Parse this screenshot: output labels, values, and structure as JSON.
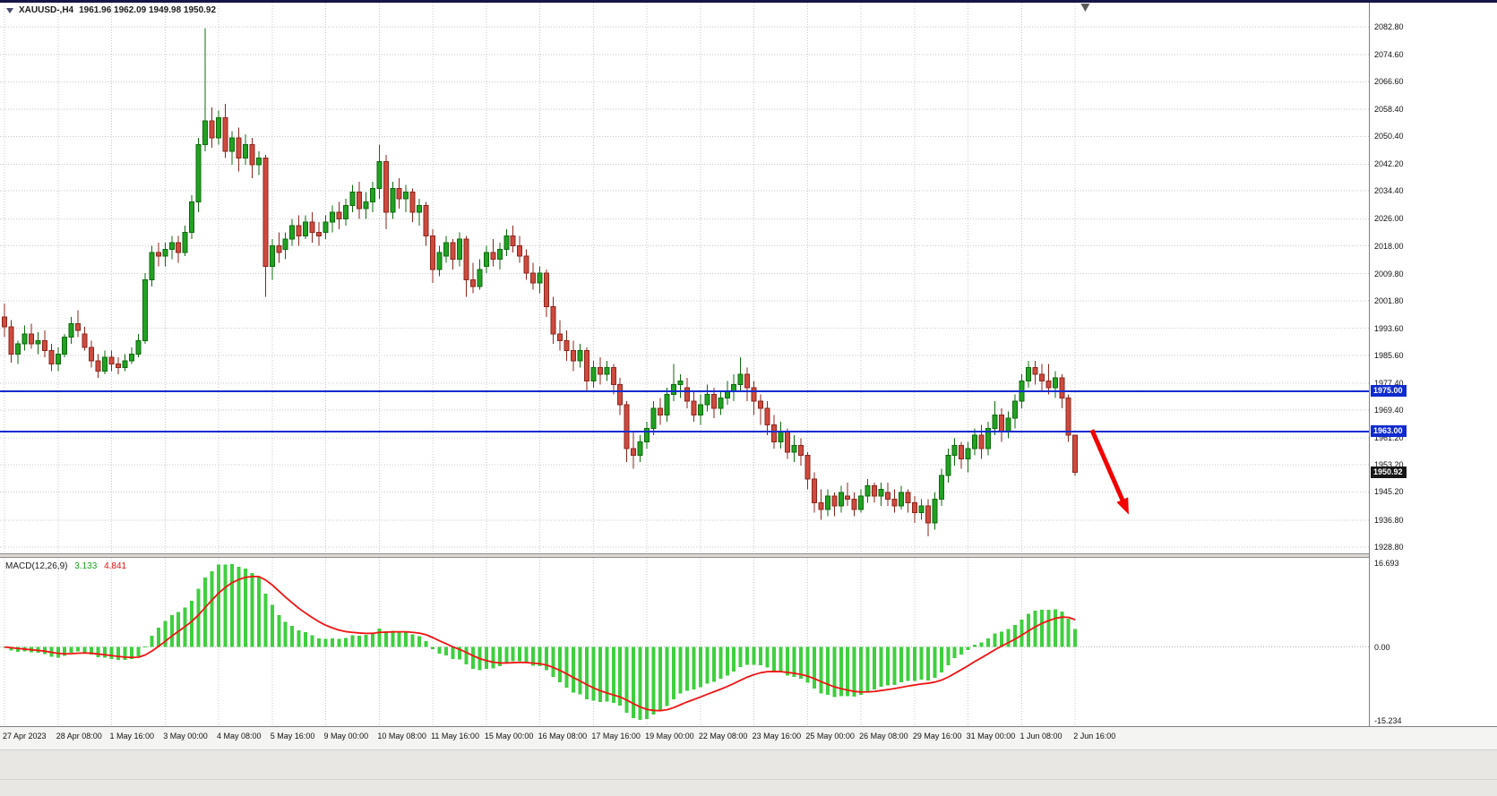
{
  "window": {
    "symbol_label": "XAUUSD-,H4",
    "ohlc": "1961.96 1962.09 1949.98 1950.92"
  },
  "colors": {
    "background": "#ffffff",
    "grid": "#c9c9c9",
    "bull": "#22a122",
    "bull_border": "#0c6b0c",
    "bear": "#cf4a3e",
    "bear_border": "#8c261d",
    "hline_blue": "#0f2bd0",
    "current_price_bg": "#161616",
    "macd_histogram": "#3fcf3f",
    "macd_signal": "#f01414",
    "arrow": "#f20000",
    "shift_marker": "#5a5a5a",
    "axis_text": "#111111"
  },
  "chart_data": {
    "type": "candlestick",
    "symbol": "XAUUSD-",
    "timeframe": "H4",
    "y_range": [
      1927,
      2090
    ],
    "y_ticks": [
      "2082.80",
      "2074.60",
      "2066.60",
      "2058.40",
      "2050.40",
      "2042.20",
      "2034.40",
      "2026.00",
      "2018.00",
      "2009.80",
      "2001.80",
      "1993.60",
      "1985.60",
      "1977.40",
      "1969.40",
      "1961.20",
      "1953.20",
      "1945.20",
      "1936.80",
      "1928.80"
    ],
    "x_labels": [
      {
        "bar": 0,
        "label": "27 Apr 2023"
      },
      {
        "bar": 8,
        "label": "28 Apr 08:00"
      },
      {
        "bar": 16,
        "label": "1 May 16:00"
      },
      {
        "bar": 24,
        "label": "3 May 00:00"
      },
      {
        "bar": 32,
        "label": "4 May 08:00"
      },
      {
        "bar": 40,
        "label": "5 May 16:00"
      },
      {
        "bar": 48,
        "label": "9 May 00:00"
      },
      {
        "bar": 56,
        "label": "10 May 08:00"
      },
      {
        "bar": 64,
        "label": "11 May 16:00"
      },
      {
        "bar": 72,
        "label": "15 May 00:00"
      },
      {
        "bar": 80,
        "label": "16 May 08:00"
      },
      {
        "bar": 88,
        "label": "17 May 16:00"
      },
      {
        "bar": 96,
        "label": "19 May 00:00"
      },
      {
        "bar": 104,
        "label": "22 May 08:00"
      },
      {
        "bar": 112,
        "label": "23 May 16:00"
      },
      {
        "bar": 120,
        "label": "25 May 00:00"
      },
      {
        "bar": 128,
        "label": "26 May 08:00"
      },
      {
        "bar": 136,
        "label": "29 May 16:00"
      },
      {
        "bar": 144,
        "label": "31 May 00:00"
      },
      {
        "bar": 152,
        "label": "1 Jun 08:00"
      },
      {
        "bar": 160,
        "label": "2 Jun 16:00"
      }
    ],
    "candles": [
      [
        1997,
        2001,
        1991,
        1994
      ],
      [
        1994,
        1996,
        1983.5,
        1986
      ],
      [
        1986,
        1990,
        1983,
        1989
      ],
      [
        1989,
        1994.5,
        1987,
        1992
      ],
      [
        1992,
        1995,
        1987.5,
        1989
      ],
      [
        1989,
        1992.5,
        1986,
        1990
      ],
      [
        1990,
        1993,
        1985,
        1987
      ],
      [
        1987,
        1989,
        1981,
        1983
      ],
      [
        1983,
        1988,
        1981,
        1986
      ],
      [
        1986,
        1992,
        1985,
        1991
      ],
      [
        1991,
        1997,
        1989,
        1995
      ],
      [
        1995,
        1999,
        1991,
        1993
      ],
      [
        1992,
        1994,
        1987,
        1988
      ],
      [
        1988,
        1990,
        1982,
        1984
      ],
      [
        1984,
        1986,
        1979,
        1981
      ],
      [
        1981,
        1987,
        1980,
        1985
      ],
      [
        1985,
        1987,
        1981,
        1983
      ],
      [
        1983,
        1985,
        1980,
        1982
      ],
      [
        1982,
        1986,
        1981,
        1984
      ],
      [
        1984,
        1988,
        1983,
        1986
      ],
      [
        1986,
        1992,
        1985,
        1990
      ],
      [
        1990,
        2010,
        1989,
        2008
      ],
      [
        2008,
        2018,
        2006,
        2016
      ],
      [
        2016,
        2019,
        2012,
        2015
      ],
      [
        2015,
        2019,
        2012,
        2017
      ],
      [
        2017,
        2021,
        2014,
        2019
      ],
      [
        2019,
        2021,
        2013,
        2016
      ],
      [
        2016,
        2024,
        2015,
        2022
      ],
      [
        2022,
        2033,
        2020,
        2031
      ],
      [
        2031,
        2050,
        2028,
        2048
      ],
      [
        2048,
        2082.5,
        2046,
        2055
      ],
      [
        2055,
        2059,
        2047,
        2050
      ],
      [
        2050,
        2058,
        2048,
        2056
      ],
      [
        2056,
        2060,
        2044,
        2046
      ],
      [
        2046,
        2052,
        2042,
        2050
      ],
      [
        2050,
        2053,
        2040,
        2044
      ],
      [
        2044,
        2051,
        2042,
        2048
      ],
      [
        2048,
        2050,
        2038,
        2042
      ],
      [
        2042,
        2046,
        2039,
        2044
      ],
      [
        2044,
        2045,
        2003,
        2012
      ],
      [
        2012,
        2020,
        2008,
        2018
      ],
      [
        2018,
        2022,
        2013,
        2016
      ],
      [
        2017,
        2022,
        2014,
        2020
      ],
      [
        2020,
        2026,
        2018,
        2024
      ],
      [
        2024,
        2027,
        2018,
        2021
      ],
      [
        2021,
        2027,
        2020,
        2025
      ],
      [
        2025,
        2028,
        2019,
        2022
      ],
      [
        2022,
        2025,
        2018,
        2021
      ],
      [
        2022,
        2027,
        2020,
        2025
      ],
      [
        2025,
        2030,
        2022,
        2028
      ],
      [
        2028,
        2031,
        2023,
        2026
      ],
      [
        2026,
        2032,
        2024,
        2030
      ],
      [
        2030,
        2036,
        2028,
        2034
      ],
      [
        2034,
        2037,
        2026,
        2029
      ],
      [
        2029,
        2034,
        2026,
        2031
      ],
      [
        2031,
        2037,
        2028,
        2035
      ],
      [
        2035,
        2048,
        2032,
        2043
      ],
      [
        2043,
        2045,
        2023,
        2028
      ],
      [
        2028,
        2037,
        2026,
        2035
      ],
      [
        2035,
        2038,
        2029,
        2032
      ],
      [
        2032,
        2036,
        2028,
        2034
      ],
      [
        2034,
        2035,
        2025,
        2028
      ],
      [
        2028,
        2032,
        2024,
        2030
      ],
      [
        2030,
        2031,
        2018,
        2021
      ],
      [
        2021,
        2023,
        2007,
        2011
      ],
      [
        2011,
        2018,
        2009,
        2016
      ],
      [
        2015,
        2021,
        2013,
        2019
      ],
      [
        2019,
        2020,
        2011,
        2014
      ],
      [
        2014,
        2022,
        2012,
        2020
      ],
      [
        2020,
        2021,
        2003,
        2008
      ],
      [
        2008,
        2013,
        2004,
        2006
      ],
      [
        2006,
        2014,
        2005,
        2011
      ],
      [
        2012,
        2018,
        2010,
        2016
      ],
      [
        2016,
        2020,
        2012,
        2014
      ],
      [
        2014,
        2019,
        2011,
        2017
      ],
      [
        2017,
        2023,
        2015,
        2021
      ],
      [
        2021,
        2024,
        2016,
        2018
      ],
      [
        2018,
        2021,
        2013,
        2015
      ],
      [
        2015,
        2017,
        2008,
        2010
      ],
      [
        2010,
        2013,
        2005,
        2007
      ],
      [
        2007,
        2012,
        2004,
        2010
      ],
      [
        2010,
        2011,
        1997,
        2000
      ],
      [
        2000,
        2003,
        1989,
        1992
      ],
      [
        1992,
        1996,
        1987,
        1990
      ],
      [
        1990,
        1993,
        1984,
        1987
      ],
      [
        1987,
        1990,
        1981,
        1984
      ],
      [
        1984,
        1989,
        1982,
        1987
      ],
      [
        1987,
        1988,
        1975,
        1978
      ],
      [
        1978,
        1984,
        1976,
        1982
      ],
      [
        1982,
        1985,
        1977,
        1980
      ],
      [
        1980,
        1984,
        1978,
        1982
      ],
      [
        1982,
        1983,
        1974,
        1977
      ],
      [
        1977,
        1979,
        1968,
        1971
      ],
      [
        1971,
        1972,
        1954,
        1958
      ],
      [
        1958,
        1963,
        1952,
        1956
      ],
      [
        1956,
        1962,
        1954,
        1960
      ],
      [
        1960,
        1966,
        1958,
        1964
      ],
      [
        1964,
        1972,
        1962,
        1970
      ],
      [
        1970,
        1973,
        1965,
        1968
      ],
      [
        1968,
        1976,
        1966,
        1974
      ],
      [
        1974,
        1983,
        1972,
        1977
      ],
      [
        1977,
        1980,
        1973,
        1978
      ],
      [
        1976,
        1979,
        1970,
        1972
      ],
      [
        1972,
        1975,
        1966,
        1968
      ],
      [
        1968,
        1974,
        1965,
        1971
      ],
      [
        1971,
        1977,
        1969,
        1974
      ],
      [
        1974,
        1976,
        1967,
        1970
      ],
      [
        1970,
        1975,
        1968,
        1973
      ],
      [
        1973,
        1978,
        1971,
        1975
      ],
      [
        1975,
        1980,
        1972,
        1977
      ],
      [
        1977,
        1985,
        1975,
        1980
      ],
      [
        1980,
        1982,
        1972,
        1976
      ],
      [
        1976,
        1978,
        1968,
        1972
      ],
      [
        1972,
        1974,
        1965,
        1970
      ],
      [
        1970,
        1972,
        1962,
        1965
      ],
      [
        1965,
        1968,
        1958,
        1960
      ],
      [
        1960,
        1966,
        1958,
        1963
      ],
      [
        1963,
        1964,
        1955,
        1957
      ],
      [
        1957,
        1962,
        1954,
        1959
      ],
      [
        1959,
        1961,
        1953,
        1956
      ],
      [
        1956,
        1957,
        1946,
        1949
      ],
      [
        1949,
        1951,
        1939,
        1942
      ],
      [
        1942,
        1946,
        1937,
        1940
      ],
      [
        1940,
        1946,
        1938,
        1944
      ],
      [
        1944,
        1945,
        1938,
        1941
      ],
      [
        1941,
        1947,
        1939,
        1945
      ],
      [
        1944,
        1948,
        1941,
        1943
      ],
      [
        1943,
        1945,
        1938,
        1940
      ],
      [
        1940,
        1946,
        1939,
        1944
      ],
      [
        1944,
        1949,
        1942,
        1947
      ],
      [
        1947,
        1948,
        1942,
        1944
      ],
      [
        1944,
        1948,
        1941,
        1946
      ],
      [
        1945,
        1948,
        1941,
        1943
      ],
      [
        1943,
        1946,
        1939,
        1941
      ],
      [
        1941,
        1947,
        1940,
        1945
      ],
      [
        1945,
        1946,
        1939,
        1942
      ],
      [
        1942,
        1944,
        1936,
        1939
      ],
      [
        1939,
        1943,
        1937,
        1941
      ],
      [
        1941,
        1943,
        1932,
        1936
      ],
      [
        1936,
        1945,
        1934,
        1943
      ],
      [
        1943,
        1952,
        1941,
        1950
      ],
      [
        1950,
        1958,
        1948,
        1956
      ],
      [
        1956,
        1961,
        1953,
        1959
      ],
      [
        1959,
        1960,
        1952,
        1955
      ],
      [
        1955,
        1960,
        1951,
        1958
      ],
      [
        1958,
        1964,
        1956,
        1962
      ],
      [
        1962,
        1965,
        1955,
        1958
      ],
      [
        1958,
        1966,
        1956,
        1964
      ],
      [
        1964,
        1972,
        1962,
        1968
      ],
      [
        1968,
        1970,
        1960,
        1963
      ],
      [
        1963,
        1969,
        1961,
        1967
      ],
      [
        1967,
        1974,
        1964,
        1972
      ],
      [
        1972,
        1980,
        1970,
        1978
      ],
      [
        1978,
        1984,
        1976,
        1982
      ],
      [
        1982,
        1984,
        1977,
        1980
      ],
      [
        1980,
        1983,
        1975,
        1978
      ],
      [
        1978,
        1983,
        1974,
        1976
      ],
      [
        1976,
        1981,
        1973,
        1979
      ],
      [
        1979,
        1980,
        1970,
        1973
      ],
      [
        1973,
        1974,
        1960,
        1962
      ],
      [
        1961.96,
        1962.09,
        1949.98,
        1950.92
      ]
    ],
    "hlines": [
      {
        "value": 1975.0,
        "label": "1975.00"
      },
      {
        "value": 1963.0,
        "label": "1963.00"
      }
    ],
    "current_price": {
      "value": 1950.92,
      "label": "1950.92"
    },
    "arrow": {
      "from_bar": 162.5,
      "from_price": 1963.5,
      "to_bar": 168,
      "to_price": 1938.5
    },
    "shift_marker_bar": 161.5,
    "macd": {
      "label": "MACD(12,26,9)",
      "value_main": "3.133",
      "value_signal": "4.841",
      "fast": 12,
      "slow": 26,
      "signal_period": 9,
      "scale_max_label": "16.693",
      "scale_zero_label": "0.00",
      "scale_min_label": "-15.234"
    }
  }
}
